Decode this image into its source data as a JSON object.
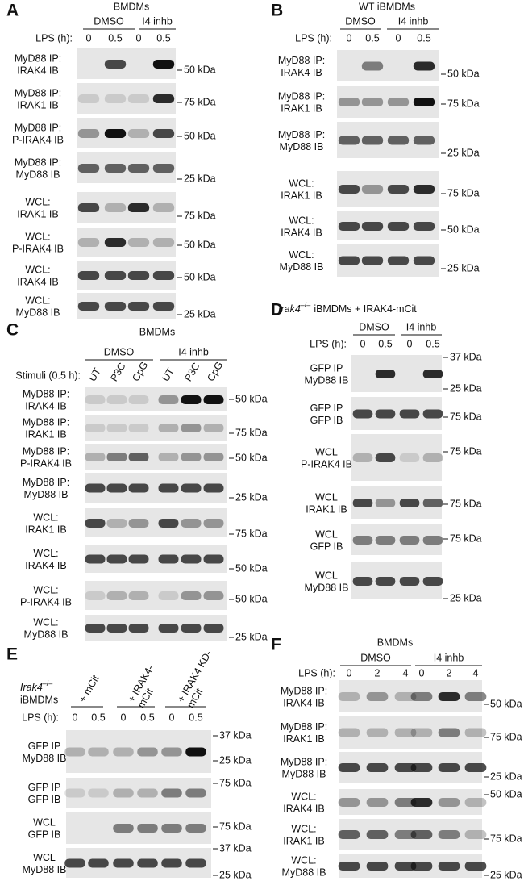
{
  "panels": [
    {
      "label": "A",
      "title": "BMDMs",
      "groups": [
        "DMSO",
        "I4 inhb"
      ],
      "lane_header": "LPS (h):",
      "lanes": [
        "0",
        "0.5",
        "0",
        "0.5"
      ],
      "rows": [
        {
          "lines": [
            "MyD88 IP:",
            "IRAK4 IB"
          ],
          "markers": [
            "50 kDa"
          ]
        },
        {
          "lines": [
            "MyD88 IP:",
            "IRAK1 IB"
          ],
          "markers": [
            "75 kDa"
          ]
        },
        {
          "lines": [
            "MyD88 IP:",
            "P-IRAK4 IB"
          ],
          "markers": [
            "50 kDa"
          ]
        },
        {
          "lines": [
            "MyD88 IP:",
            "MyD88 IB"
          ],
          "markers": [
            "25 kDa"
          ]
        },
        {
          "lines": [
            "WCL:",
            "IRAK1 IB"
          ],
          "markers": [
            "75 kDa"
          ]
        },
        {
          "lines": [
            "WCL:",
            "P-IRAK4 IB"
          ],
          "markers": [
            "50 kDa"
          ]
        },
        {
          "lines": [
            "WCL:",
            "IRAK4 IB"
          ],
          "markers": [
            "50 kDa"
          ]
        },
        {
          "lines": [
            "WCL:",
            "MyD88 IB"
          ],
          "markers": [
            "25 kDa"
          ]
        }
      ]
    },
    {
      "label": "B",
      "title": "WT iBMDMs",
      "groups": [
        "DMSO",
        "I4 inhb"
      ],
      "lane_header": "LPS (h):",
      "lanes": [
        "0",
        "0.5",
        "0",
        "0.5"
      ],
      "rows": [
        {
          "lines": [
            "MyD88 IP:",
            "IRAK4 IB"
          ],
          "markers": [
            "50 kDa"
          ]
        },
        {
          "lines": [
            "MyD88 IP:",
            "IRAK1 IB"
          ],
          "markers": [
            "75 kDa"
          ]
        },
        {
          "lines": [
            "MyD88 IP:",
            "MyD88 IB"
          ],
          "markers": [
            "25 kDa"
          ]
        },
        {
          "lines": [
            "WCL:",
            "IRAK1 IB"
          ],
          "markers": [
            "75 kDa"
          ]
        },
        {
          "lines": [
            "WCL:",
            "IRAK4 IB"
          ],
          "markers": [
            "50 kDa"
          ]
        },
        {
          "lines": [
            "WCL:",
            "MyD88 IB"
          ],
          "markers": [
            "25 kDa"
          ]
        }
      ]
    },
    {
      "label": "C",
      "title": "BMDMs",
      "groups": [
        "DMSO",
        "I4 inhb"
      ],
      "lane_header": "Stimuli (0.5 h):",
      "lanes": [
        "UT",
        "P3C",
        "CpG",
        "UT",
        "P3C",
        "CpG"
      ],
      "rows": [
        {
          "lines": [
            "MyD88 IP:",
            "IRAK4 IB"
          ],
          "markers": [
            "50 kDa"
          ]
        },
        {
          "lines": [
            "MyD88 IP:",
            "IRAK1 IB"
          ],
          "markers": [
            "75 kDa"
          ]
        },
        {
          "lines": [
            "MyD88 IP:",
            "P-IRAK4 IB"
          ],
          "markers": [
            "50 kDa"
          ]
        },
        {
          "lines": [
            "MyD88 IP:",
            "MyD88 IB"
          ],
          "markers": [
            "25 kDa"
          ]
        },
        {
          "lines": [
            "WCL:",
            "IRAK1 IB"
          ],
          "markers": [
            "75 kDa"
          ]
        },
        {
          "lines": [
            "WCL:",
            "IRAK4 IB"
          ],
          "markers": [
            "50 kDa"
          ]
        },
        {
          "lines": [
            "WCL:",
            "P-IRAK4 IB"
          ],
          "markers": [
            "50 kDa"
          ]
        },
        {
          "lines": [
            "WCL:",
            "MyD88 IB"
          ],
          "markers": [
            "25 kDa"
          ]
        }
      ]
    },
    {
      "label": "D",
      "title": {
        "gene": "Irak4",
        "genotype": "–/–",
        "text": "iBMDMs + IRAK4-mCit"
      },
      "groups": [
        "DMSO",
        "I4 inhb"
      ],
      "lane_header": "LPS (h):",
      "lanes": [
        "0",
        "0.5",
        "0",
        "0.5"
      ],
      "rows": [
        {
          "lines": [
            "GFP IP",
            "MyD88 IB"
          ],
          "markers": [
            "37 kDa",
            "25 kDa"
          ]
        },
        {
          "lines": [
            "GFP IP",
            "GFP IB"
          ],
          "markers": [
            "75 kDa"
          ]
        },
        {
          "lines": [
            "WCL",
            "P-IRAK4 IB"
          ],
          "markers": [
            "75 kDa"
          ]
        },
        {
          "lines": [
            "WCL",
            "IRAK1 IB"
          ],
          "markers": [
            "75 kDa"
          ]
        },
        {
          "lines": [
            "WCL",
            "GFP IB"
          ],
          "markers": [
            "75 kDa"
          ]
        },
        {
          "lines": [
            "WCL",
            "MyD88 IB"
          ],
          "markers": [
            "25 kDa"
          ]
        }
      ]
    },
    {
      "label": "E",
      "title": {
        "gene": "Irak4",
        "genotype": "–/–",
        "text": "iBMDMs"
      },
      "groups": [
        [
          "+ mCit"
        ],
        [
          "+ IRAK4-",
          "mCit"
        ],
        [
          "+ IRAK4 KD-",
          "mCit"
        ]
      ],
      "lane_header": "LPS (h):",
      "lanes": [
        "0",
        "0.5",
        "0",
        "0.5",
        "0",
        "0.5"
      ],
      "rows": [
        {
          "lines": [
            "GFP IP",
            "MyD88 IB"
          ],
          "markers": [
            "37 kDa",
            "25 kDa"
          ]
        },
        {
          "lines": [
            "GFP IP",
            "GFP IB"
          ],
          "markers": [
            "75 kDa"
          ]
        },
        {
          "lines": [
            "WCL",
            "GFP IB"
          ],
          "markers": [
            "75 kDa"
          ]
        },
        {
          "lines": [
            "WCL",
            "MyD88 IB"
          ],
          "markers": [
            "37 kDa",
            "25 kDa"
          ]
        }
      ]
    },
    {
      "label": "F",
      "title": "BMDMs",
      "groups": [
        "DMSO",
        "I4 inhb"
      ],
      "lane_header": "LPS (h):",
      "lanes": [
        "0",
        "2",
        "4",
        "0",
        "2",
        "4"
      ],
      "rows": [
        {
          "lines": [
            "MyD88 IP:",
            "IRAK4 IB"
          ],
          "markers": [
            "50 kDa"
          ]
        },
        {
          "lines": [
            "MyD88 IP:",
            "IRAK1 IB"
          ],
          "markers": [
            "75 kDa"
          ]
        },
        {
          "lines": [
            "MyD88 IP:",
            "MyD88 IB"
          ],
          "markers": [
            "25 kDa"
          ]
        },
        {
          "lines": [
            "WCL:",
            "IRAK4 IB"
          ],
          "markers": [
            "50 kDa"
          ]
        },
        {
          "lines": [
            "WCL:",
            "IRAK1 IB"
          ],
          "markers": [
            "75 kDa"
          ]
        },
        {
          "lines": [
            "WCL:",
            "MyD88 IB"
          ],
          "markers": [
            "25 kDa"
          ]
        }
      ]
    }
  ]
}
